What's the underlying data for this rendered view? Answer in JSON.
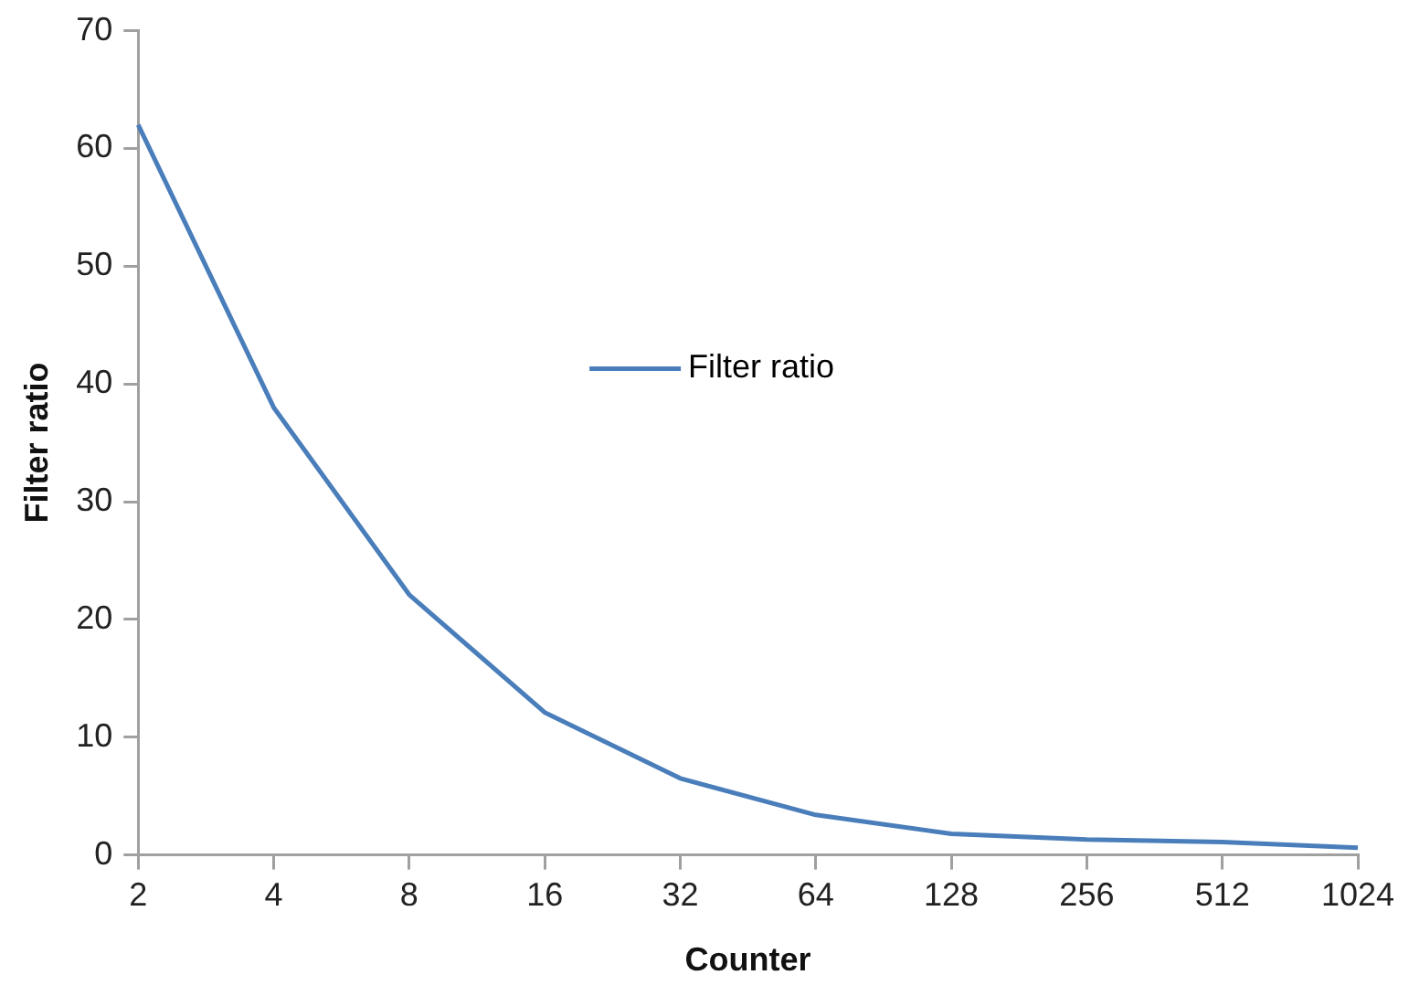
{
  "chart_data": {
    "type": "line",
    "xlabel": "Counter",
    "ylabel": "Filter ratio",
    "categories": [
      "2",
      "4",
      "8",
      "16",
      "32",
      "64",
      "128",
      "256",
      "512",
      "1024"
    ],
    "series": [
      {
        "name": "Filter ratio",
        "color": "#4a7ebb",
        "values": [
          62,
          38,
          22.1,
          12.1,
          6.5,
          3.4,
          1.8,
          1.3,
          1.1,
          0.6
        ]
      }
    ],
    "ylim": [
      0,
      70
    ],
    "yticks": [
      0,
      10,
      20,
      30,
      40,
      50,
      60,
      70
    ],
    "grid": false,
    "legend": "center",
    "marker": "none",
    "line_style": "solid"
  }
}
